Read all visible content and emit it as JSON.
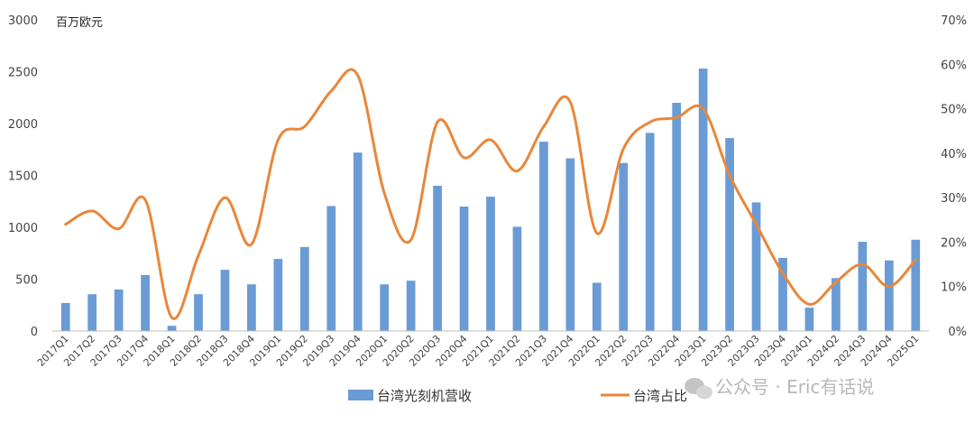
{
  "chart_data": {
    "type": "bar+line",
    "ylabel": "百万欧元",
    "y_left": {
      "min": 0,
      "max": 3000,
      "ticks": [
        0,
        500,
        1000,
        1500,
        2000,
        2500,
        3000
      ]
    },
    "y_right": {
      "min": 0,
      "max": 70,
      "ticks": [
        "0%",
        "10%",
        "20%",
        "30%",
        "40%",
        "50%",
        "60%",
        "70%"
      ]
    },
    "categories": [
      "2017Q1",
      "2017Q2",
      "2017Q3",
      "2017Q4",
      "2018Q1",
      "2018Q2",
      "2018Q3",
      "2018Q4",
      "2019Q1",
      "2019Q2",
      "2019Q3",
      "2019Q4",
      "2020Q1",
      "2020Q2",
      "2020Q3",
      "2020Q4",
      "2021Q1",
      "2021Q2",
      "2021Q3",
      "2021Q4",
      "2022Q1",
      "2022Q2",
      "2022Q3",
      "2022Q4",
      "2023Q1",
      "2023Q2",
      "2023Q3",
      "2023Q4",
      "2024Q1",
      "2024Q2",
      "2024Q3",
      "2024Q4",
      "2025Q1"
    ],
    "series": [
      {
        "name": "台湾光刻机营收",
        "type": "bar",
        "axis": "left",
        "color": "#6a9bd4",
        "values": [
          270,
          355,
          400,
          540,
          50,
          355,
          590,
          450,
          695,
          810,
          1205,
          1720,
          450,
          485,
          1400,
          1200,
          1295,
          1005,
          1825,
          1665,
          465,
          1620,
          1910,
          2200,
          2530,
          1860,
          1240,
          705,
          225,
          510,
          860,
          680,
          880
        ]
      },
      {
        "name": "台湾占比",
        "type": "line",
        "axis": "right",
        "color": "#e8873a",
        "values": [
          24,
          27,
          23,
          29.5,
          3,
          17,
          30,
          19.5,
          43,
          46,
          54,
          57.5,
          31,
          20.5,
          47,
          39,
          43,
          36,
          46,
          51.5,
          22,
          41,
          47,
          48,
          50,
          35,
          24,
          13,
          6,
          11,
          15,
          10,
          16
        ]
      }
    ],
    "legend_position": "bottom",
    "grid": false
  },
  "watermark": {
    "text": "公众号 · Eric有话说",
    "icon": "wechat-icon"
  }
}
